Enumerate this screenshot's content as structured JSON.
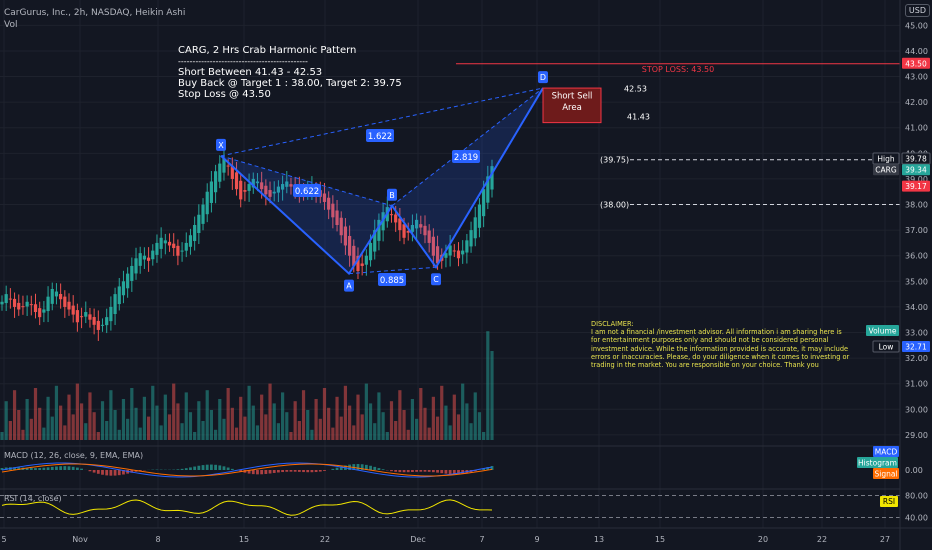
{
  "header": {
    "symbol_line": "CarGurus, Inc., 2h, NASDAQ, Heikin Ashi",
    "volume_label": "Vol",
    "currency_button": "USD"
  },
  "annotation": {
    "title": "CARG, 2 Hrs Crab Harmonic Pattern",
    "separator": "---------------------------------------------",
    "line1": "Short Between 41.43 - 42.53",
    "line2": "Buy Back @ Target 1 : 38.00, Target 2: 39.75",
    "line3": "Stop Loss @ 43.50"
  },
  "disclaimer": {
    "title": "DISCLAIMER:",
    "body": "I am not a financial /investment advisor. All information i am sharing here is for entertainment purposes only and should not be considered personal investment advice. While the information provided is accurate, it may include errors or inaccuracies. Please, do your diligence when it comes to investing or trading in the market. You are responsible on your choice. Thank you"
  },
  "indicators": {
    "macd_label": "MACD (12, 26, close, 9, EMA, EMA)",
    "rsi_label": "RSI (14, close)"
  },
  "colors": {
    "background": "#131722",
    "bull": "#26a69a",
    "bear": "#ef5350",
    "pattern": "#2962ff",
    "stop": "#f23645",
    "disclaimer": "#e8e34e",
    "rsi": "#f2e600",
    "macd": "#2962ff",
    "signal": "#ff6d00"
  },
  "chart_data": {
    "type": "candlestick",
    "title": "CarGurus, Inc., 2h, NASDAQ, Heikin Ashi",
    "price_axis_ticks": [
      "45.00",
      "44.00",
      "43.00",
      "42.00",
      "41.00",
      "40.00",
      "39.00",
      "38.00",
      "37.00",
      "36.00",
      "35.00",
      "34.00",
      "33.00",
      "32.00",
      "31.00",
      "30.00",
      "29.00"
    ],
    "price_range": [
      28.8,
      45.6
    ],
    "time_axis_ticks": [
      "5",
      "Nov",
      "8",
      "15",
      "22",
      "Dec",
      "7",
      "9",
      "13",
      "15",
      "20",
      "22",
      "27"
    ],
    "pattern": {
      "name": "Crab Harmonic",
      "points": [
        {
          "label": "X",
          "price": 39.9
        },
        {
          "label": "A",
          "price": 35.3
        },
        {
          "label": "B",
          "price": 37.95
        },
        {
          "label": "C",
          "price": 35.55
        },
        {
          "label": "D",
          "price": 42.55
        }
      ],
      "ratios": [
        "1.622",
        "0.622",
        "0.885",
        "2.819"
      ]
    },
    "levels": [
      {
        "label": "STOP LOSS: 43.50",
        "price": 43.5
      },
      {
        "label": "42.53",
        "price": 42.53
      },
      {
        "label": "41.43",
        "price": 41.43
      },
      {
        "label": "(39.75)",
        "price": 39.75
      },
      {
        "label": "(38.00)",
        "price": 38.0
      }
    ],
    "zone_label": "Short Sell Area",
    "price_badges": [
      {
        "text": "43.50",
        "price": 43.5,
        "bg": "#f23645"
      },
      {
        "text": "High",
        "price": 39.78,
        "bg": "#131722"
      },
      {
        "text": "39.78",
        "price": 39.78,
        "bg": "#131722"
      },
      {
        "text": "CARG",
        "price": 39.34,
        "bg": "#363a45"
      },
      {
        "text": "39.34",
        "price": 39.34,
        "bg": "#26a69a"
      },
      {
        "text": "39.17",
        "price": 39.17,
        "bg": "#f23645"
      },
      {
        "text": "Volume",
        "price": 33.0,
        "bg": "#26a69a"
      },
      {
        "text": "Low",
        "price": 32.71,
        "bg": "#131722"
      },
      {
        "text": "32.71",
        "price": 32.71,
        "bg": "#2962ff"
      }
    ],
    "macd": {
      "ticks": [
        "0.00"
      ],
      "badges": [
        "MACD",
        "Histogram",
        "Signal"
      ]
    },
    "rsi": {
      "ticks": [
        "80.00",
        "40.00"
      ],
      "badge": "RSI"
    },
    "closes": [
      34.2,
      34.5,
      34.3,
      34.0,
      33.9,
      34.0,
      34.2,
      34.1,
      33.8,
      33.6,
      33.9,
      34.4,
      34.7,
      34.6,
      34.3,
      34.0,
      33.9,
      33.7,
      33.4,
      33.6,
      33.8,
      33.5,
      33.3,
      33.1,
      33.3,
      33.6,
      34.0,
      34.5,
      34.8,
      35.0,
      35.3,
      35.6,
      35.9,
      36.1,
      36.0,
      35.8,
      36.2,
      36.5,
      36.7,
      36.6,
      36.4,
      36.3,
      36.0,
      36.2,
      36.5,
      36.8,
      37.2,
      37.6,
      38.0,
      38.5,
      38.9,
      39.3,
      39.6,
      39.8,
      39.5,
      39.0,
      38.6,
      38.2,
      38.5,
      38.8,
      39.0,
      38.9,
      38.6,
      38.4,
      38.3,
      38.5,
      38.7,
      38.8,
      38.9,
      38.7,
      38.6,
      38.5,
      38.4,
      38.6,
      38.7,
      38.5,
      38.3,
      38.1,
      37.8,
      37.5,
      37.2,
      36.8,
      36.4,
      36.0,
      35.6,
      35.4,
      35.6,
      36.0,
      36.5,
      37.0,
      37.4,
      37.7,
      37.9,
      37.6,
      37.3,
      37.0,
      36.7,
      36.9,
      37.2,
      37.4,
      37.1,
      36.8,
      36.5,
      36.0,
      35.7,
      35.8,
      36.1,
      36.4,
      36.2,
      35.9,
      36.2,
      36.6,
      37.0,
      37.5,
      38.0,
      38.6,
      39.1,
      39.5
    ]
  }
}
